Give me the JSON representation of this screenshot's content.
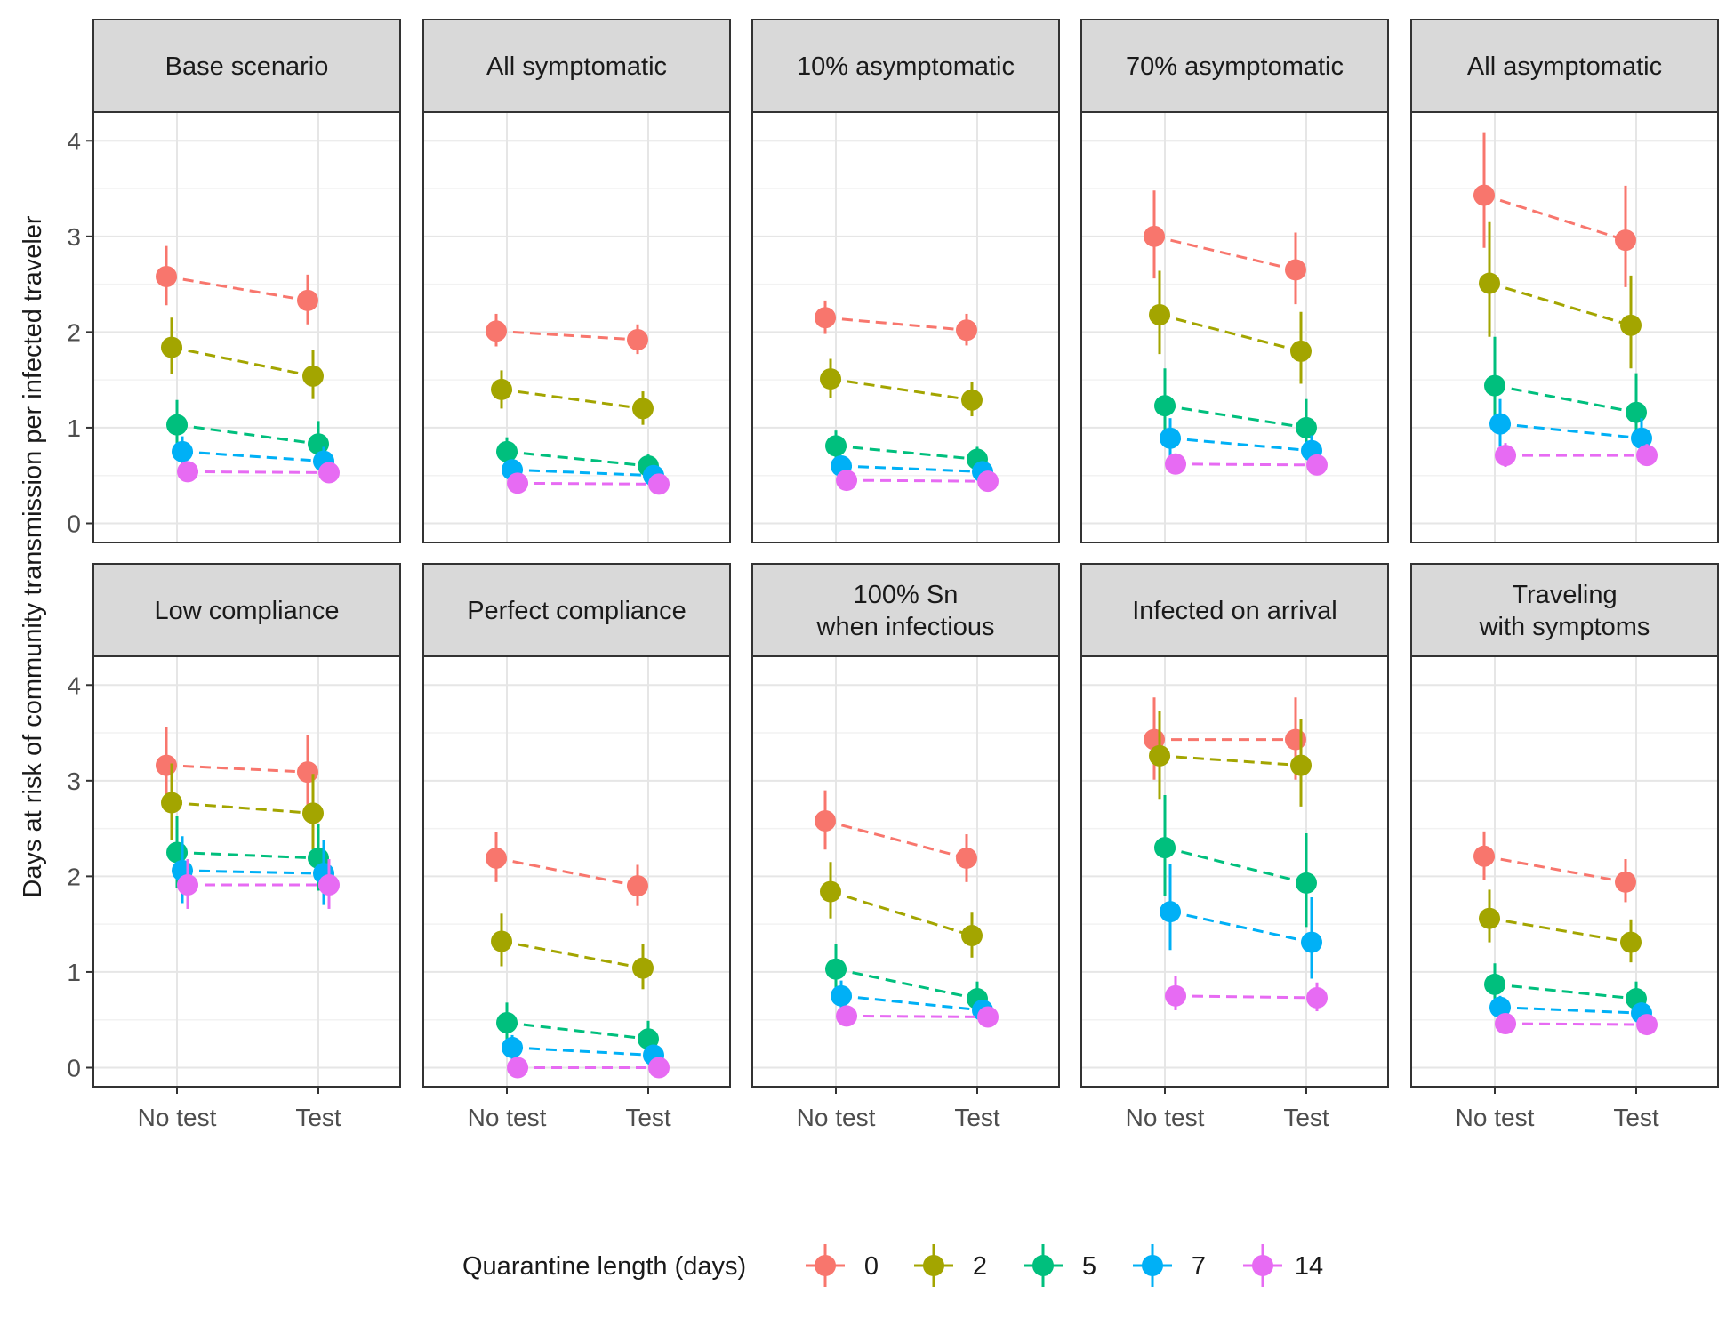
{
  "chart_data": {
    "type": "scatter",
    "facet_layout": "2 rows x 5 columns, shared y axis",
    "ylabel": "Days at risk of community transmission per infected traveler",
    "xlabel": "",
    "x_categories": [
      "No test",
      "Test"
    ],
    "y_ticks": [
      0,
      1,
      2,
      3,
      4
    ],
    "ylim": [
      -0.2,
      4.3
    ],
    "grid": true,
    "error_bars": true,
    "connecting_lines": "dashed",
    "legend": {
      "title": "Quarantine length (days)",
      "placement": "bottom",
      "entries": [
        {
          "label": "0",
          "color": "#F8766D"
        },
        {
          "label": "2",
          "color": "#A3A500"
        },
        {
          "label": "5",
          "color": "#00BF7D"
        },
        {
          "label": "7",
          "color": "#00B0F6"
        },
        {
          "label": "14",
          "color": "#E76BF3"
        }
      ]
    },
    "panels": [
      {
        "title": [
          "Base scenario"
        ],
        "series": [
          {
            "quarantine": "0",
            "mean": [
              2.58,
              2.33
            ],
            "lo": [
              2.28,
              2.08
            ],
            "hi": [
              2.9,
              2.6
            ]
          },
          {
            "quarantine": "2",
            "mean": [
              1.84,
              1.54
            ],
            "lo": [
              1.56,
              1.3
            ],
            "hi": [
              2.15,
              1.81
            ]
          },
          {
            "quarantine": "5",
            "mean": [
              1.03,
              0.83
            ],
            "lo": [
              0.82,
              0.66
            ],
            "hi": [
              1.29,
              1.07
            ]
          },
          {
            "quarantine": "7",
            "mean": [
              0.75,
              0.65
            ],
            "lo": [
              0.62,
              0.54
            ],
            "hi": [
              0.91,
              0.8
            ]
          },
          {
            "quarantine": "14",
            "mean": [
              0.54,
              0.53
            ],
            "lo": [
              0.46,
              0.44
            ],
            "hi": [
              0.62,
              0.62
            ]
          }
        ]
      },
      {
        "title": [
          "All symptomatic"
        ],
        "series": [
          {
            "quarantine": "0",
            "mean": [
              2.01,
              1.92
            ],
            "lo": [
              1.85,
              1.77
            ],
            "hi": [
              2.19,
              2.08
            ]
          },
          {
            "quarantine": "2",
            "mean": [
              1.4,
              1.2
            ],
            "lo": [
              1.2,
              1.03
            ],
            "hi": [
              1.6,
              1.38
            ]
          },
          {
            "quarantine": "5",
            "mean": [
              0.75,
              0.6
            ],
            "lo": [
              0.62,
              0.5
            ],
            "hi": [
              0.9,
              0.72
            ]
          },
          {
            "quarantine": "7",
            "mean": [
              0.56,
              0.5
            ],
            "lo": [
              0.46,
              0.42
            ],
            "hi": [
              0.66,
              0.58
            ]
          },
          {
            "quarantine": "14",
            "mean": [
              0.42,
              0.41
            ],
            "lo": [
              0.36,
              0.35
            ],
            "hi": [
              0.48,
              0.47
            ]
          }
        ]
      },
      {
        "title": [
          "10% asymptomatic"
        ],
        "series": [
          {
            "quarantine": "0",
            "mean": [
              2.15,
              2.02
            ],
            "lo": [
              1.98,
              1.86
            ],
            "hi": [
              2.33,
              2.19
            ]
          },
          {
            "quarantine": "2",
            "mean": [
              1.51,
              1.29
            ],
            "lo": [
              1.31,
              1.12
            ],
            "hi": [
              1.72,
              1.48
            ]
          },
          {
            "quarantine": "5",
            "mean": [
              0.81,
              0.67
            ],
            "lo": [
              0.67,
              0.55
            ],
            "hi": [
              0.97,
              0.8
            ]
          },
          {
            "quarantine": "7",
            "mean": [
              0.6,
              0.54
            ],
            "lo": [
              0.5,
              0.45
            ],
            "hi": [
              0.7,
              0.63
            ]
          },
          {
            "quarantine": "14",
            "mean": [
              0.45,
              0.44
            ],
            "lo": [
              0.38,
              0.37
            ],
            "hi": [
              0.52,
              0.51
            ]
          }
        ]
      },
      {
        "title": [
          "70% asymptomatic"
        ],
        "series": [
          {
            "quarantine": "0",
            "mean": [
              3.0,
              2.65
            ],
            "lo": [
              2.56,
              2.29
            ],
            "hi": [
              3.48,
              3.04
            ]
          },
          {
            "quarantine": "2",
            "mean": [
              2.18,
              1.8
            ],
            "lo": [
              1.77,
              1.46
            ],
            "hi": [
              2.64,
              2.21
            ]
          },
          {
            "quarantine": "5",
            "mean": [
              1.23,
              1.0
            ],
            "lo": [
              0.92,
              0.75
            ],
            "hi": [
              1.62,
              1.3
            ]
          },
          {
            "quarantine": "7",
            "mean": [
              0.89,
              0.76
            ],
            "lo": [
              0.7,
              0.62
            ],
            "hi": [
              1.1,
              0.92
            ]
          },
          {
            "quarantine": "14",
            "mean": [
              0.62,
              0.61
            ],
            "lo": [
              0.52,
              0.51
            ],
            "hi": [
              0.73,
              0.72
            ]
          }
        ]
      },
      {
        "title": [
          "All asymptomatic"
        ],
        "series": [
          {
            "quarantine": "0",
            "mean": [
              3.43,
              2.96
            ],
            "lo": [
              2.88,
              2.47
            ],
            "hi": [
              4.09,
              3.53
            ]
          },
          {
            "quarantine": "2",
            "mean": [
              2.51,
              2.07
            ],
            "lo": [
              1.95,
              1.62
            ],
            "hi": [
              3.15,
              2.59
            ]
          },
          {
            "quarantine": "5",
            "mean": [
              1.44,
              1.16
            ],
            "lo": [
              1.0,
              0.85
            ],
            "hi": [
              1.95,
              1.57
            ]
          },
          {
            "quarantine": "7",
            "mean": [
              1.04,
              0.89
            ],
            "lo": [
              0.8,
              0.7
            ],
            "hi": [
              1.3,
              1.1
            ]
          },
          {
            "quarantine": "14",
            "mean": [
              0.71,
              0.71
            ],
            "lo": [
              0.59,
              0.6
            ],
            "hi": [
              0.84,
              0.83
            ]
          }
        ]
      },
      {
        "title": [
          "Low compliance"
        ],
        "series": [
          {
            "quarantine": "0",
            "mean": [
              3.16,
              3.09
            ],
            "lo": [
              2.79,
              2.74
            ],
            "hi": [
              3.56,
              3.48
            ]
          },
          {
            "quarantine": "2",
            "mean": [
              2.77,
              2.66
            ],
            "lo": [
              2.38,
              2.28
            ],
            "hi": [
              3.18,
              3.07
            ]
          },
          {
            "quarantine": "5",
            "mean": [
              2.25,
              2.19
            ],
            "lo": [
              1.88,
              1.85
            ],
            "hi": [
              2.63,
              2.55
            ]
          },
          {
            "quarantine": "7",
            "mean": [
              2.06,
              2.03
            ],
            "lo": [
              1.72,
              1.7
            ],
            "hi": [
              2.42,
              2.38
            ]
          },
          {
            "quarantine": "14",
            "mean": [
              1.91,
              1.91
            ],
            "lo": [
              1.66,
              1.66
            ],
            "hi": [
              2.18,
              2.18
            ]
          }
        ]
      },
      {
        "title": [
          "Perfect compliance"
        ],
        "series": [
          {
            "quarantine": "0",
            "mean": [
              2.19,
              1.9
            ],
            "lo": [
              1.94,
              1.69
            ],
            "hi": [
              2.46,
              2.12
            ]
          },
          {
            "quarantine": "2",
            "mean": [
              1.32,
              1.04
            ],
            "lo": [
              1.06,
              0.82
            ],
            "hi": [
              1.61,
              1.29
            ]
          },
          {
            "quarantine": "5",
            "mean": [
              0.47,
              0.3
            ],
            "lo": [
              0.28,
              0.15
            ],
            "hi": [
              0.68,
              0.49
            ]
          },
          {
            "quarantine": "7",
            "mean": [
              0.21,
              0.13
            ],
            "lo": [
              0.08,
              0.03
            ],
            "hi": [
              0.34,
              0.24
            ]
          },
          {
            "quarantine": "14",
            "mean": [
              0.0,
              0.0
            ],
            "lo": [
              0.0,
              0.0
            ],
            "hi": [
              0.0,
              0.0
            ]
          }
        ]
      },
      {
        "title": [
          "100% Sn",
          "when infectious"
        ],
        "series": [
          {
            "quarantine": "0",
            "mean": [
              2.58,
              2.19
            ],
            "lo": [
              2.28,
              1.94
            ],
            "hi": [
              2.9,
              2.44
            ]
          },
          {
            "quarantine": "2",
            "mean": [
              1.84,
              1.38
            ],
            "lo": [
              1.56,
              1.15
            ],
            "hi": [
              2.15,
              1.62
            ]
          },
          {
            "quarantine": "5",
            "mean": [
              1.03,
              0.72
            ],
            "lo": [
              0.82,
              0.56
            ],
            "hi": [
              1.29,
              0.9
            ]
          },
          {
            "quarantine": "7",
            "mean": [
              0.75,
              0.6
            ],
            "lo": [
              0.62,
              0.5
            ],
            "hi": [
              0.91,
              0.71
            ]
          },
          {
            "quarantine": "14",
            "mean": [
              0.54,
              0.53
            ],
            "lo": [
              0.46,
              0.45
            ],
            "hi": [
              0.62,
              0.61
            ]
          }
        ]
      },
      {
        "title": [
          "Infected on arrival"
        ],
        "series": [
          {
            "quarantine": "0",
            "mean": [
              3.43,
              3.43
            ],
            "lo": [
              3.01,
              3.01
            ],
            "hi": [
              3.87,
              3.87
            ]
          },
          {
            "quarantine": "2",
            "mean": [
              3.26,
              3.16
            ],
            "lo": [
              2.81,
              2.73
            ],
            "hi": [
              3.73,
              3.64
            ]
          },
          {
            "quarantine": "5",
            "mean": [
              2.3,
              1.93
            ],
            "lo": [
              1.79,
              1.47
            ],
            "hi": [
              2.85,
              2.45
            ]
          },
          {
            "quarantine": "7",
            "mean": [
              1.63,
              1.31
            ],
            "lo": [
              1.23,
              0.93
            ],
            "hi": [
              2.13,
              1.78
            ]
          },
          {
            "quarantine": "14",
            "mean": [
              0.75,
              0.73
            ],
            "lo": [
              0.6,
              0.59
            ],
            "hi": [
              0.96,
              0.89
            ]
          }
        ]
      },
      {
        "title": [
          "Traveling",
          "with symptoms"
        ],
        "series": [
          {
            "quarantine": "0",
            "mean": [
              2.21,
              1.94
            ],
            "lo": [
              1.96,
              1.73
            ],
            "hi": [
              2.47,
              2.18
            ]
          },
          {
            "quarantine": "2",
            "mean": [
              1.56,
              1.31
            ],
            "lo": [
              1.31,
              1.1
            ],
            "hi": [
              1.86,
              1.55
            ]
          },
          {
            "quarantine": "5",
            "mean": [
              0.87,
              0.72
            ],
            "lo": [
              0.71,
              0.58
            ],
            "hi": [
              1.09,
              0.9
            ]
          },
          {
            "quarantine": "7",
            "mean": [
              0.63,
              0.57
            ],
            "lo": [
              0.53,
              0.47
            ],
            "hi": [
              0.75,
              0.68
            ]
          },
          {
            "quarantine": "14",
            "mean": [
              0.46,
              0.45
            ],
            "lo": [
              0.39,
              0.38
            ],
            "hi": [
              0.53,
              0.52
            ]
          }
        ]
      }
    ]
  }
}
